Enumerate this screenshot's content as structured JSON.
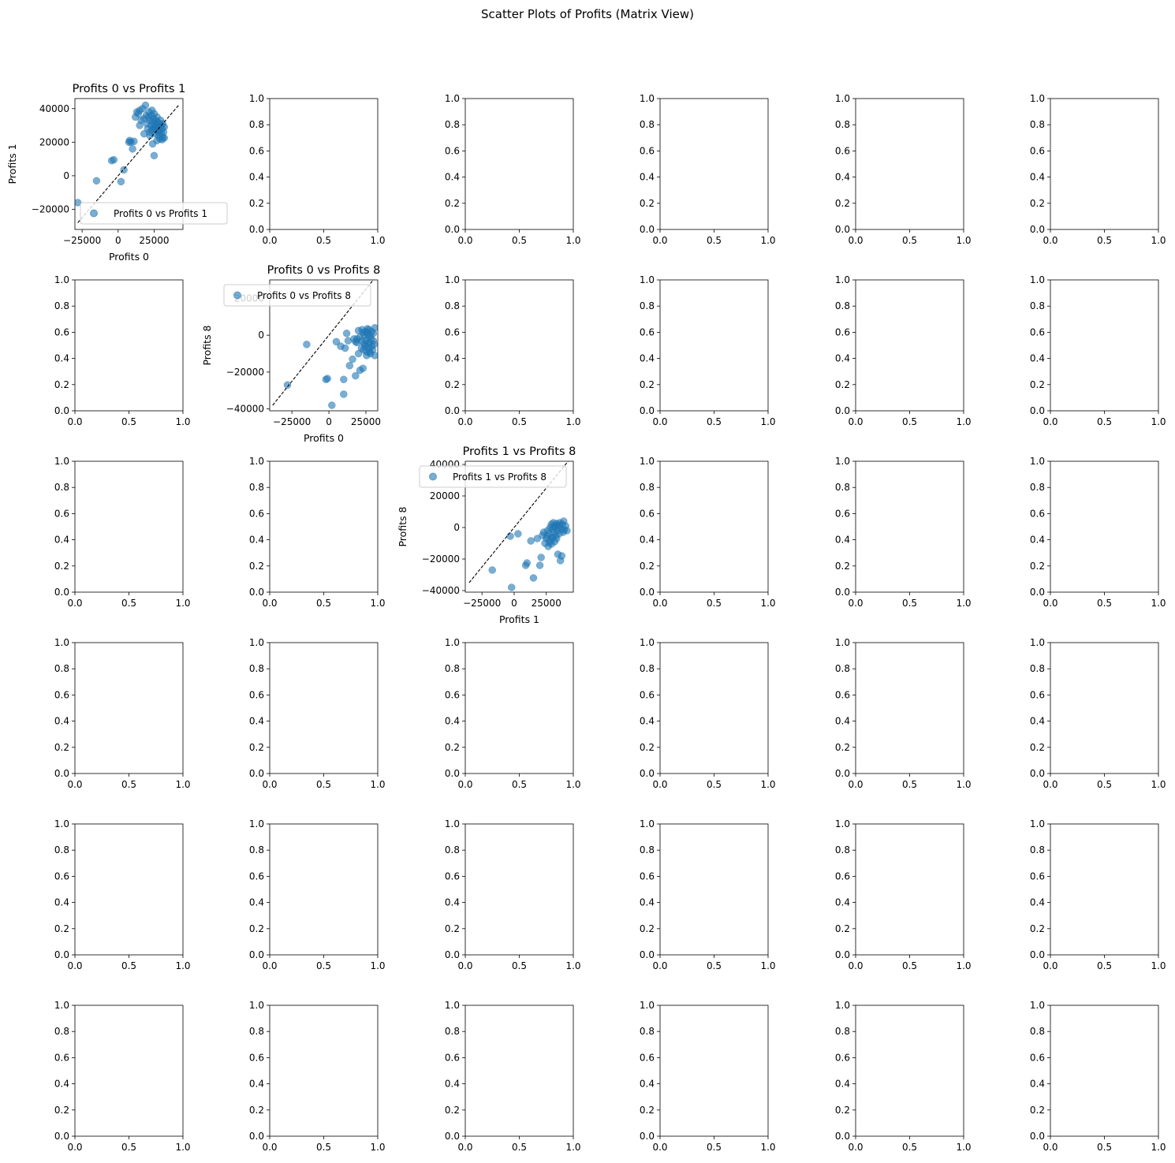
{
  "figure": {
    "suptitle": "Scatter Plots of Profits (Matrix View)",
    "rows": 6,
    "cols": 6
  },
  "empty_axes": {
    "xticks": [
      "0.0",
      "0.5",
      "1.0"
    ],
    "yticks": [
      "0.0",
      "0.2",
      "0.4",
      "0.6",
      "0.8",
      "1.0"
    ]
  },
  "colors": {
    "marker": "#1f77b4",
    "diagonal": "#000000",
    "axes": "#000000"
  },
  "chart_data": [
    {
      "type": "scatter",
      "row": 0,
      "col": 0,
      "title": "Profits 0 vs Profits 1",
      "xlabel": "Profits 0",
      "ylabel": "Profits 1",
      "legend": "Profits 0 vs Profits 1",
      "legend_loc": "lower right",
      "xlim": [
        -30000,
        45000
      ],
      "ylim": [
        -32000,
        46000
      ],
      "xticks": [
        -25000,
        0,
        25000
      ],
      "xtick_labels": [
        "−25000",
        "0",
        "25000"
      ],
      "yticks": [
        -20000,
        0,
        20000,
        40000
      ],
      "ytick_labels": [
        "−20000",
        "0",
        "20000",
        "40000"
      ],
      "diagonal": [
        -28000,
        42000
      ],
      "points": [
        [
          -28000,
          -16000
        ],
        [
          -15000,
          -3000
        ],
        [
          2000,
          -3500
        ],
        [
          -3000,
          9500
        ],
        [
          -4500,
          9000
        ],
        [
          4000,
          3500
        ],
        [
          7500,
          20000
        ],
        [
          8000,
          21000
        ],
        [
          9000,
          20000
        ],
        [
          10000,
          16000
        ],
        [
          11000,
          20500
        ],
        [
          12000,
          35000
        ],
        [
          13000,
          38000
        ],
        [
          14000,
          37000
        ],
        [
          15000,
          39000
        ],
        [
          15000,
          30000
        ],
        [
          16000,
          33000
        ],
        [
          17000,
          40000
        ],
        [
          18000,
          34000
        ],
        [
          18000,
          25000
        ],
        [
          19000,
          42000
        ],
        [
          19500,
          36000
        ],
        [
          20000,
          31000
        ],
        [
          20500,
          28000
        ],
        [
          21000,
          35000
        ],
        [
          21500,
          38000
        ],
        [
          22000,
          33000
        ],
        [
          22000,
          26000
        ],
        [
          23000,
          30000
        ],
        [
          23000,
          36000
        ],
        [
          23500,
          39000
        ],
        [
          24000,
          32000
        ],
        [
          24000,
          28000
        ],
        [
          24500,
          34000
        ],
        [
          25000,
          29000
        ],
        [
          25000,
          37000
        ],
        [
          25500,
          31000
        ],
        [
          26000,
          33000
        ],
        [
          26000,
          25000
        ],
        [
          26500,
          30000
        ],
        [
          27000,
          27000
        ],
        [
          27000,
          35000
        ],
        [
          27500,
          32000
        ],
        [
          28000,
          29000
        ],
        [
          28000,
          24000
        ],
        [
          28500,
          31000
        ],
        [
          29000,
          27000
        ],
        [
          29000,
          22000
        ],
        [
          29500,
          33000
        ],
        [
          30000,
          30000
        ],
        [
          30000,
          25000
        ],
        [
          30500,
          28000
        ],
        [
          31000,
          23000
        ],
        [
          31000,
          31000
        ],
        [
          31500,
          26000
        ],
        [
          32000,
          29000
        ],
        [
          32000,
          22500
        ],
        [
          24000,
          19000
        ],
        [
          25000,
          12000
        ],
        [
          27000,
          21000
        ],
        [
          22000,
          24000
        ],
        [
          26000,
          28500
        ],
        [
          23500,
          27000
        ],
        [
          28000,
          26000
        ],
        [
          30500,
          21500
        ]
      ]
    },
    {
      "type": "scatter",
      "row": 1,
      "col": 1,
      "title": "Profits 0 vs Profits 8",
      "xlabel": "Profits 0",
      "ylabel": "Profits 8",
      "legend": "Profits 0 vs Profits 8",
      "legend_loc": "upper left",
      "xlim": [
        -40000,
        33000
      ],
      "ylim": [
        -41000,
        30000
      ],
      "xticks": [
        -25000,
        0,
        25000
      ],
      "xtick_labels": [
        "−25000",
        "0",
        "25000"
      ],
      "yticks": [
        -40000,
        -20000,
        0,
        20000
      ],
      "ytick_labels": [
        "−40000",
        "−20000",
        "0",
        "20000"
      ],
      "diagonal": [
        -38000,
        30000
      ],
      "points": [
        [
          -28000,
          -27000
        ],
        [
          -15000,
          -5000
        ],
        [
          -1000,
          -23500
        ],
        [
          -2000,
          -24000
        ],
        [
          2000,
          -38000
        ],
        [
          5000,
          -3500
        ],
        [
          8000,
          -6000
        ],
        [
          10000,
          -24000
        ],
        [
          10000,
          -32000
        ],
        [
          11000,
          -7000
        ],
        [
          12000,
          1000
        ],
        [
          13000,
          -3000
        ],
        [
          14000,
          -16500
        ],
        [
          16000,
          -13000
        ],
        [
          17000,
          -2000
        ],
        [
          18000,
          -22000
        ],
        [
          19000,
          -4000
        ],
        [
          20000,
          -10000
        ],
        [
          21000,
          -19000
        ],
        [
          22000,
          -3000
        ],
        [
          22500,
          3000
        ],
        [
          23000,
          -18000
        ],
        [
          23500,
          -8000
        ],
        [
          24000,
          0
        ],
        [
          24500,
          -6000
        ],
        [
          25000,
          2000
        ],
        [
          25000,
          -3000
        ],
        [
          25500,
          -9000
        ],
        [
          26000,
          1000
        ],
        [
          26000,
          -5000
        ],
        [
          26500,
          -1000
        ],
        [
          27000,
          -7000
        ],
        [
          27000,
          3000
        ],
        [
          27500,
          -4000
        ],
        [
          28000,
          0
        ],
        [
          28000,
          -10000
        ],
        [
          28500,
          -2000
        ],
        [
          29000,
          -6000
        ],
        [
          29000,
          2000
        ],
        [
          29500,
          -8000
        ],
        [
          30000,
          -3000
        ],
        [
          30000,
          1000
        ],
        [
          30500,
          -5000
        ],
        [
          31000,
          -11000
        ],
        [
          31000,
          4000
        ],
        [
          21000,
          -1000
        ],
        [
          22000,
          -7000
        ],
        [
          23000,
          1500
        ],
        [
          24000,
          -4500
        ],
        [
          20000,
          2500
        ],
        [
          19000,
          -2000
        ],
        [
          18000,
          -3500
        ],
        [
          25500,
          -11000
        ],
        [
          27500,
          -9000
        ],
        [
          26000,
          3500
        ]
      ]
    },
    {
      "type": "scatter",
      "row": 2,
      "col": 2,
      "title": "Profits 1 vs Profits 8",
      "xlabel": "Profits 1",
      "ylabel": "Profits 8",
      "legend": "Profits 1 vs Profits 8",
      "legend_loc": "upper left",
      "xlim": [
        -38000,
        46000
      ],
      "ylim": [
        -41000,
        42000
      ],
      "xticks": [
        -25000,
        0,
        25000
      ],
      "xtick_labels": [
        "−25000",
        "0",
        "25000"
      ],
      "yticks": [
        -40000,
        -20000,
        0,
        20000,
        40000
      ],
      "ytick_labels": [
        "−40000",
        "−20000",
        "0",
        "20000",
        "40000"
      ],
      "diagonal": [
        -35000,
        42000
      ],
      "points": [
        [
          -17000,
          -27000
        ],
        [
          -3000,
          -5500
        ],
        [
          3000,
          -4000
        ],
        [
          9000,
          -24000
        ],
        [
          10000,
          -22500
        ],
        [
          -2000,
          -38000
        ],
        [
          15000,
          -32000
        ],
        [
          13000,
          -8500
        ],
        [
          18000,
          -7000
        ],
        [
          20000,
          -24000
        ],
        [
          21000,
          -19000
        ],
        [
          22000,
          -5000
        ],
        [
          23000,
          -3000
        ],
        [
          24000,
          -10000
        ],
        [
          25000,
          -7000
        ],
        [
          26000,
          -2000
        ],
        [
          26500,
          -12000
        ],
        [
          27000,
          -4000
        ],
        [
          28000,
          0
        ],
        [
          28500,
          -8000
        ],
        [
          29000,
          2000
        ],
        [
          29500,
          -6000
        ],
        [
          30000,
          -1000
        ],
        [
          30500,
          3000
        ],
        [
          31000,
          -3000
        ],
        [
          31500,
          -9000
        ],
        [
          32000,
          1000
        ],
        [
          32500,
          -5000
        ],
        [
          33000,
          2500
        ],
        [
          33500,
          -2000
        ],
        [
          34000,
          -17000
        ],
        [
          34500,
          0
        ],
        [
          35000,
          -4000
        ],
        [
          35500,
          3000
        ],
        [
          36000,
          -21000
        ],
        [
          36500,
          -1000
        ],
        [
          37000,
          -18000
        ],
        [
          37500,
          2000
        ],
        [
          38000,
          -3000
        ],
        [
          38500,
          4000
        ],
        [
          39000,
          -1500
        ],
        [
          40000,
          1000
        ],
        [
          41000,
          -2000
        ],
        [
          25500,
          -5500
        ],
        [
          27500,
          -9500
        ],
        [
          29000,
          -10500
        ],
        [
          30000,
          -6500
        ],
        [
          31000,
          500
        ],
        [
          33000,
          -7000
        ],
        [
          35000,
          1500
        ]
      ]
    }
  ]
}
